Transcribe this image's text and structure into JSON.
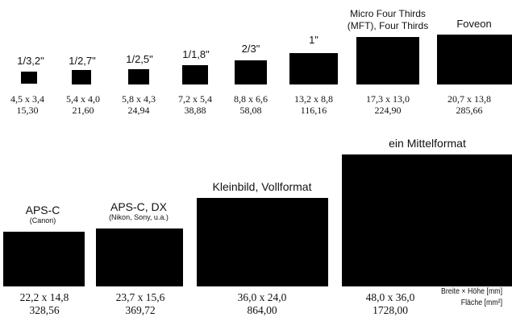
{
  "sensors": [
    {
      "name": "1/3,2\"",
      "dims": "4,5 x 3,4",
      "area": "15,30"
    },
    {
      "name": "1/2,7\"",
      "dims": "5,4 x 4,0",
      "area": "21,60"
    },
    {
      "name": "1/2,5\"",
      "dims": "5,8 x 4,3",
      "area": "24,94"
    },
    {
      "name": "1/1,8\"",
      "dims": "7,2 x 5,4",
      "area": "38,88"
    },
    {
      "name": "2/3\"",
      "dims": "8,8 x 6,6",
      "area": "58,08"
    },
    {
      "name": "1\"",
      "dims": "13,2 x 8,8",
      "area": "116,16"
    },
    {
      "name": "Micro Four Thirds",
      "name_line2": "(MFT), Four Thirds",
      "dims": "17,3 x 13,0",
      "area": "224,90"
    },
    {
      "name": "Foveon",
      "dims": "20,7 x 13,8",
      "area": "285,66"
    },
    {
      "name": "APS-C",
      "sub": "(Canon)",
      "dims": "22,2 x 14,8",
      "area": "328,56"
    },
    {
      "name": "APS-C, DX",
      "sub": "(Nikon, Sony, u.a.)",
      "dims": "23,7 x 15,6",
      "area": "369,72"
    },
    {
      "name": "Kleinbild, Vollformat",
      "dims": "36,0 x 24,0",
      "area": "864,00"
    },
    {
      "name": "ein Mittelformat",
      "dims": "48,0 x 36,0",
      "area": "1728,00"
    }
  ],
  "legend": {
    "dims_label": "Breite × Höhe [mm]",
    "area_label": "Fläche [mm²]"
  }
}
